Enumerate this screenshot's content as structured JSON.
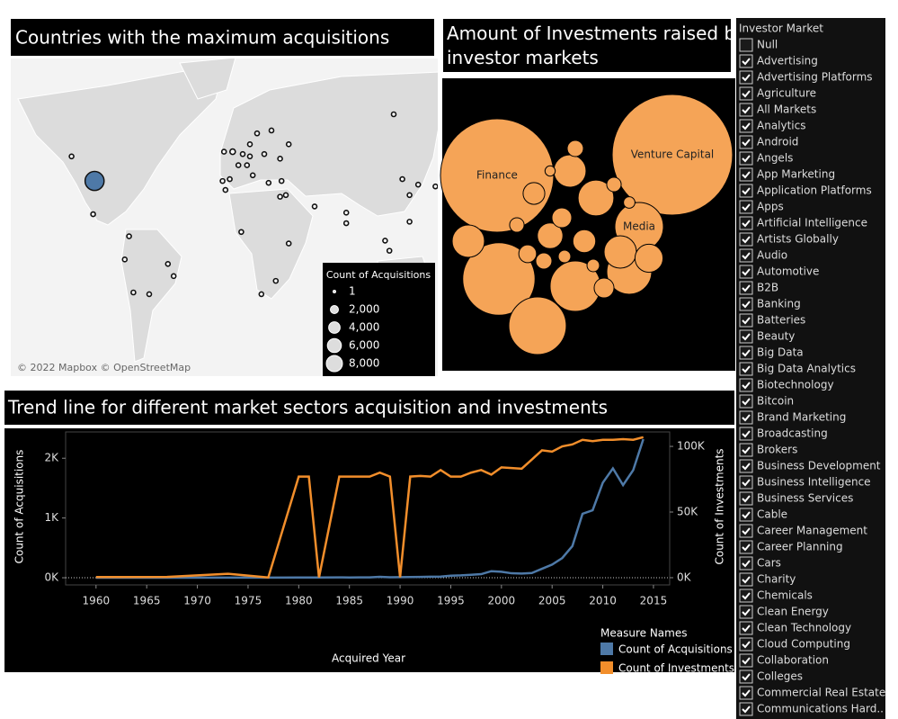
{
  "chart_data": [
    {
      "type": "map",
      "title": "Countries with the maximum acquisitions",
      "attribution": "© 2022 Mapbox © OpenStreetMap",
      "size_legend": {
        "title": "Count of Acquisitions",
        "values": [
          1,
          2000,
          4000,
          6000,
          8000
        ],
        "value_labels": [
          "1",
          "2,000",
          "4,000",
          "6,000",
          "8,000"
        ]
      },
      "color": "#4e79a7",
      "points": [
        {
          "lon": -98,
          "lat": 39,
          "value": 11000
        },
        {
          "lon": -114,
          "lat": 51,
          "value": 250
        },
        {
          "lon": -99,
          "lat": 19,
          "value": 60
        },
        {
          "lon": -74,
          "lat": 4,
          "value": 40
        },
        {
          "lon": -77,
          "lat": -12,
          "value": 20
        },
        {
          "lon": -71,
          "lat": -33,
          "value": 30
        },
        {
          "lon": -60,
          "lat": -34,
          "value": 50
        },
        {
          "lon": -47,
          "lat": -15,
          "value": 60
        },
        {
          "lon": -43,
          "lat": -23,
          "value": 40
        },
        {
          "lon": -2,
          "lat": 53,
          "value": 900
        },
        {
          "lon": -8,
          "lat": 53,
          "value": 80
        },
        {
          "lon": 2,
          "lat": 47,
          "value": 300
        },
        {
          "lon": -4,
          "lat": 40,
          "value": 100
        },
        {
          "lon": -9,
          "lat": 39,
          "value": 30
        },
        {
          "lon": 10,
          "lat": 51,
          "value": 350
        },
        {
          "lon": 5,
          "lat": 52,
          "value": 120
        },
        {
          "lon": 15,
          "lat": 60,
          "value": 60
        },
        {
          "lon": 25,
          "lat": 61,
          "value": 40
        },
        {
          "lon": 10,
          "lat": 56,
          "value": 40
        },
        {
          "lon": 20,
          "lat": 52,
          "value": 30
        },
        {
          "lon": 12,
          "lat": 42,
          "value": 70
        },
        {
          "lon": 8,
          "lat": 47,
          "value": 60
        },
        {
          "lon": 37,
          "lat": 56,
          "value": 80
        },
        {
          "lon": 31,
          "lat": 50,
          "value": 20
        },
        {
          "lon": 32,
          "lat": 39,
          "value": 30
        },
        {
          "lon": 23,
          "lat": 38,
          "value": 15
        },
        {
          "lon": 35,
          "lat": 31,
          "value": 200
        },
        {
          "lon": 31,
          "lat": 30,
          "value": 15
        },
        {
          "lon": 55,
          "lat": 24,
          "value": 30
        },
        {
          "lon": 77,
          "lat": 20,
          "value": 250
        },
        {
          "lon": 77,
          "lat": 13,
          "value": 100
        },
        {
          "lon": 116,
          "lat": 40,
          "value": 300
        },
        {
          "lon": 121,
          "lat": 31,
          "value": 100
        },
        {
          "lon": 139,
          "lat": 36,
          "value": 150
        },
        {
          "lon": 127,
          "lat": 37,
          "value": 80
        },
        {
          "lon": 104,
          "lat": 1,
          "value": 100
        },
        {
          "lon": 107,
          "lat": -6,
          "value": 20
        },
        {
          "lon": 121,
          "lat": 14,
          "value": 10
        },
        {
          "lon": 18,
          "lat": -34,
          "value": 30
        },
        {
          "lon": 28,
          "lat": -26,
          "value": 20
        },
        {
          "lon": 37,
          "lat": -1,
          "value": 15
        },
        {
          "lon": 4,
          "lat": 7,
          "value": 20
        },
        {
          "lon": -7,
          "lat": 34,
          "value": 10
        },
        {
          "lon": 110,
          "lat": 66,
          "value": 10
        }
      ]
    },
    {
      "type": "bubble",
      "title": "Amount of Investments raised by investor markets",
      "color": "#f5a457",
      "categories": [
        "Finance",
        "Venture Capital",
        "Media",
        null,
        null,
        null,
        null,
        null,
        null,
        null,
        null,
        null,
        null,
        null,
        null,
        null,
        null,
        null,
        null,
        null,
        null,
        null,
        null,
        null,
        null,
        null
      ],
      "values": [
        4900,
        5540,
        900,
        2000,
        1260,
        400,
        970,
        770,
        490,
        400,
        400,
        300,
        250,
        200,
        180,
        150,
        150,
        120,
        100,
        100,
        80,
        80,
        60,
        60,
        50,
        40
      ]
    },
    {
      "type": "line",
      "title": "Trend line for different market sectors acquisition and investments",
      "xlabel": "Acquired Year",
      "ylabel": "Count of Acquisitions",
      "y2label": "Count of Investments",
      "legend_title": "Measure Names",
      "x": [
        1960,
        1967,
        1973,
        1977,
        1980,
        1981,
        1982,
        1984,
        1985,
        1986,
        1987,
        1988,
        1989,
        1990,
        1991,
        1992,
        1993,
        1994,
        1995,
        1996,
        1997,
        1998,
        1999,
        2000,
        2001,
        2002,
        2003,
        2004,
        2005,
        2006,
        2007,
        2008,
        2009,
        2010,
        2011,
        2012,
        2013,
        2014
      ],
      "series": [
        {
          "name": "Count of Acquisitions",
          "color": "#4e79a7",
          "values": [
            0,
            0,
            2,
            3,
            5,
            4,
            5,
            6,
            5,
            6,
            7,
            15,
            8,
            10,
            12,
            14,
            18,
            20,
            35,
            40,
            50,
            60,
            110,
            100,
            75,
            70,
            80,
            150,
            220,
            330,
            530,
            1070,
            1130,
            1590,
            1830,
            1550,
            1800,
            2320
          ]
        },
        {
          "name": "Count of Investments",
          "color": "#f28e2b",
          "axis": "y2",
          "values": [
            500,
            600,
            3000,
            200,
            77000,
            77000,
            200,
            77000,
            77000,
            77000,
            77000,
            80000,
            77000,
            300,
            77000,
            77500,
            77000,
            82000,
            77000,
            77000,
            80000,
            82000,
            78500,
            84000,
            83500,
            83000,
            90000,
            97000,
            96000,
            100000,
            101500,
            105000,
            104000,
            105000,
            105000,
            105500,
            105000,
            107000
          ]
        }
      ],
      "xlim": [
        1957,
        2016.6
      ],
      "xticks": [
        1960,
        1965,
        1970,
        1975,
        1980,
        1985,
        1990,
        1995,
        2000,
        2005,
        2010,
        2015
      ],
      "ylim": [
        -120,
        2440
      ],
      "yticks": [
        {
          "value": 0,
          "label": "0K"
        },
        {
          "value": 1000,
          "label": "1K"
        },
        {
          "value": 2000,
          "label": "2K"
        }
      ],
      "y2lim": [
        -5500,
        111000
      ],
      "y2ticks": [
        {
          "value": 0,
          "label": "0K"
        },
        {
          "value": 50000,
          "label": "50K"
        },
        {
          "value": 100000,
          "label": "100K"
        }
      ]
    }
  ],
  "filter": {
    "title": "Investor Market",
    "items": [
      {
        "label": "Null",
        "checked": false
      },
      {
        "label": "Advertising",
        "checked": true
      },
      {
        "label": "Advertising Platforms",
        "checked": true
      },
      {
        "label": "Agriculture",
        "checked": true
      },
      {
        "label": "All Markets",
        "checked": true
      },
      {
        "label": "Analytics",
        "checked": true
      },
      {
        "label": "Android",
        "checked": true
      },
      {
        "label": "Angels",
        "checked": true
      },
      {
        "label": "App Marketing",
        "checked": true
      },
      {
        "label": "Application Platforms",
        "checked": true
      },
      {
        "label": "Apps",
        "checked": true
      },
      {
        "label": "Artificial Intelligence",
        "checked": true
      },
      {
        "label": "Artists Globally",
        "checked": true
      },
      {
        "label": "Audio",
        "checked": true
      },
      {
        "label": "Automotive",
        "checked": true
      },
      {
        "label": "B2B",
        "checked": true
      },
      {
        "label": "Banking",
        "checked": true
      },
      {
        "label": "Batteries",
        "checked": true
      },
      {
        "label": "Beauty",
        "checked": true
      },
      {
        "label": "Big Data",
        "checked": true
      },
      {
        "label": "Big Data Analytics",
        "checked": true
      },
      {
        "label": "Biotechnology",
        "checked": true
      },
      {
        "label": "Bitcoin",
        "checked": true
      },
      {
        "label": "Brand Marketing",
        "checked": true
      },
      {
        "label": "Broadcasting",
        "checked": true
      },
      {
        "label": "Brokers",
        "checked": true
      },
      {
        "label": "Business Development",
        "checked": true
      },
      {
        "label": "Business Intelligence",
        "checked": true
      },
      {
        "label": "Business Services",
        "checked": true
      },
      {
        "label": "Cable",
        "checked": true
      },
      {
        "label": "Career Management",
        "checked": true
      },
      {
        "label": "Career Planning",
        "checked": true
      },
      {
        "label": "Cars",
        "checked": true
      },
      {
        "label": "Charity",
        "checked": true
      },
      {
        "label": "Chemicals",
        "checked": true
      },
      {
        "label": "Clean Energy",
        "checked": true
      },
      {
        "label": "Clean Technology",
        "checked": true
      },
      {
        "label": "Cloud Computing",
        "checked": true
      },
      {
        "label": "Collaboration",
        "checked": true
      },
      {
        "label": "Colleges",
        "checked": true
      },
      {
        "label": "Commercial Real Estate",
        "checked": true
      },
      {
        "label": "Communications Hard..",
        "checked": true
      }
    ]
  }
}
